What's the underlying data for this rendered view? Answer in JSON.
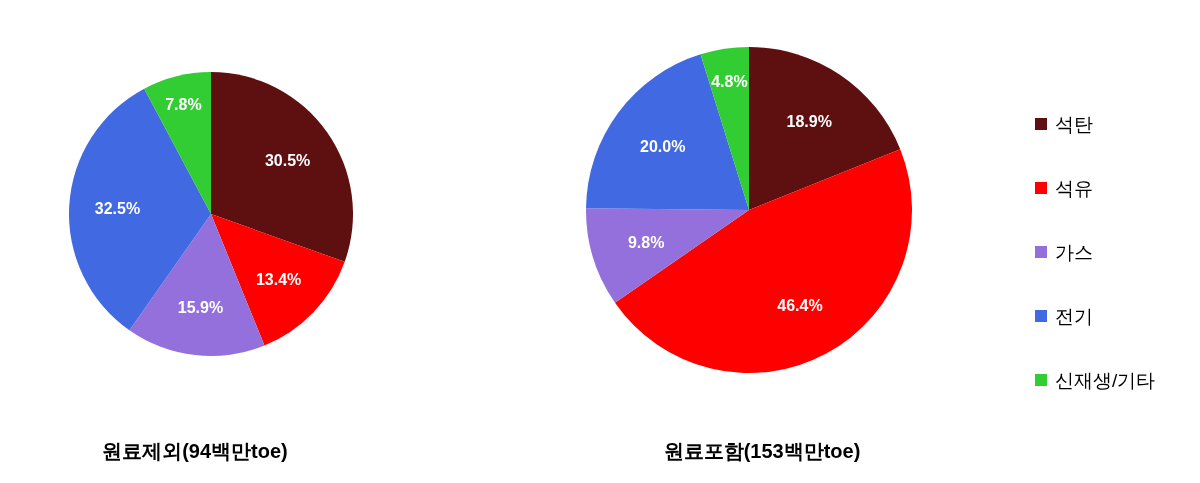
{
  "chart_data": [
    {
      "type": "pie",
      "title": "원료제외(94백만toe)",
      "categories": [
        null,
        null,
        null,
        null,
        null
      ],
      "values": [
        30.5,
        13.4,
        15.9,
        32.5,
        7.8
      ],
      "colors": [
        "#5e0f10",
        "#ff0000",
        "#9370db",
        "#4169e1",
        "#32cd32"
      ],
      "value_labels": [
        "30.5%",
        "13.4%",
        "15.9%",
        "32.5%",
        "7.8%"
      ],
      "legend": false
    },
    {
      "type": "pie",
      "title": "원료포함(153백만toe)",
      "categories": [
        "석탄",
        "석유",
        "가스",
        "전기",
        "신재생/기타"
      ],
      "values": [
        18.9,
        46.4,
        9.8,
        20.0,
        4.8
      ],
      "colors": [
        "#5e0f10",
        "#ff0000",
        "#9370db",
        "#4169e1",
        "#32cd32"
      ],
      "value_labels": [
        "18.9%",
        "46.4%",
        "9.8%",
        "20.0%",
        "4.8%"
      ],
      "legend": "right"
    }
  ]
}
